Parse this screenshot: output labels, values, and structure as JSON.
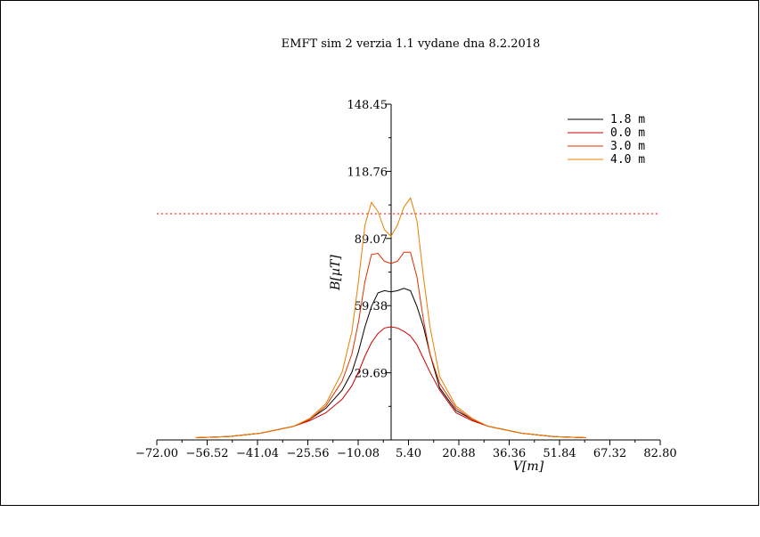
{
  "chart_data": {
    "type": "line",
    "title": "EMFT sim 2 verzia 1.1 vydane dna 8.2.2018",
    "xlabel": "V[m]",
    "ylabel": "B[µT]",
    "xlim": [
      -72.0,
      82.8
    ],
    "ylim": [
      0,
      148.45
    ],
    "x_ticks": [
      "−72.00",
      "−56.52",
      "−41.04",
      "−25.56",
      "−10.08",
      "5.40",
      "20.88",
      "36.36",
      "51.84",
      "67.32",
      "82.80"
    ],
    "x_tick_values": [
      -72.0,
      -56.52,
      -41.04,
      -25.56,
      -10.08,
      5.4,
      20.88,
      36.36,
      51.84,
      67.32,
      82.8
    ],
    "y_ticks": [
      "29.69",
      "59.38",
      "89.07",
      "118.76",
      "148.45"
    ],
    "y_tick_values": [
      29.69,
      59.38,
      89.07,
      118.76,
      148.45
    ],
    "reference_line": {
      "y": 100,
      "color": "#ff0000",
      "style": "dotted"
    },
    "legend_position": "top-right",
    "series": [
      {
        "name": "1.8 m",
        "color": "#000000",
        "x": [
          -60,
          -50,
          -40,
          -30,
          -25,
          -20,
          -15,
          -12,
          -10,
          -8,
          -6,
          -4,
          -2,
          0,
          2,
          4,
          6,
          8,
          10,
          12,
          15,
          20,
          25,
          30,
          40,
          50,
          60
        ],
        "y": [
          1.0,
          1.5,
          3.0,
          6.0,
          9.0,
          14.0,
          22.0,
          30.0,
          39.0,
          50.0,
          59.0,
          65.0,
          66.0,
          65.5,
          66.0,
          67.0,
          66.0,
          59.0,
          50.0,
          38.0,
          23.0,
          13.0,
          9.0,
          6.0,
          3.0,
          1.5,
          1.0
        ]
      },
      {
        "name": "0.0 m",
        "color": "#cc0000",
        "x": [
          -60,
          -50,
          -40,
          -30,
          -25,
          -20,
          -15,
          -12,
          -10,
          -8,
          -6,
          -4,
          -2,
          0,
          2,
          4,
          6,
          8,
          10,
          12,
          15,
          20,
          25,
          30,
          40,
          50,
          60
        ],
        "y": [
          1.0,
          1.5,
          3.0,
          6.0,
          8.5,
          12.0,
          18.0,
          24.0,
          30.0,
          37.0,
          43.0,
          47.0,
          49.5,
          50.0,
          49.5,
          48.0,
          46.0,
          42.0,
          36.0,
          30.0,
          22.0,
          12.0,
          8.5,
          6.0,
          3.0,
          1.5,
          1.0
        ]
      },
      {
        "name": "3.0 m",
        "color": "#e03000",
        "x": [
          -60,
          -50,
          -40,
          -30,
          -25,
          -20,
          -15,
          -12,
          -10,
          -8,
          -6,
          -4,
          -2,
          0,
          2,
          4,
          6,
          8,
          10,
          12,
          15,
          20,
          25,
          30,
          40,
          50,
          60
        ],
        "y": [
          1.0,
          1.5,
          3.0,
          6.0,
          9.0,
          15.0,
          26.0,
          38.0,
          52.0,
          70.0,
          82.0,
          82.5,
          79.0,
          78.0,
          79.0,
          83.0,
          83.0,
          72.0,
          53.0,
          38.0,
          25.0,
          14.0,
          9.0,
          6.0,
          3.0,
          1.5,
          1.0
        ]
      },
      {
        "name": "4.0 m",
        "color": "#e88000",
        "x": [
          -60,
          -50,
          -40,
          -30,
          -25,
          -20,
          -15,
          -12,
          -10,
          -8,
          -6,
          -4,
          -2,
          0,
          2,
          4,
          6,
          8,
          10,
          12,
          15,
          20,
          25,
          30,
          40,
          50,
          60
        ],
        "y": [
          1.0,
          1.5,
          3.0,
          6.0,
          9.5,
          16.0,
          30.0,
          48.0,
          70.0,
          95.0,
          105.0,
          101.0,
          93.0,
          90.0,
          95.0,
          103.0,
          107.0,
          97.0,
          72.0,
          50.0,
          28.0,
          15.0,
          9.5,
          6.0,
          3.0,
          1.5,
          1.0
        ]
      }
    ]
  }
}
